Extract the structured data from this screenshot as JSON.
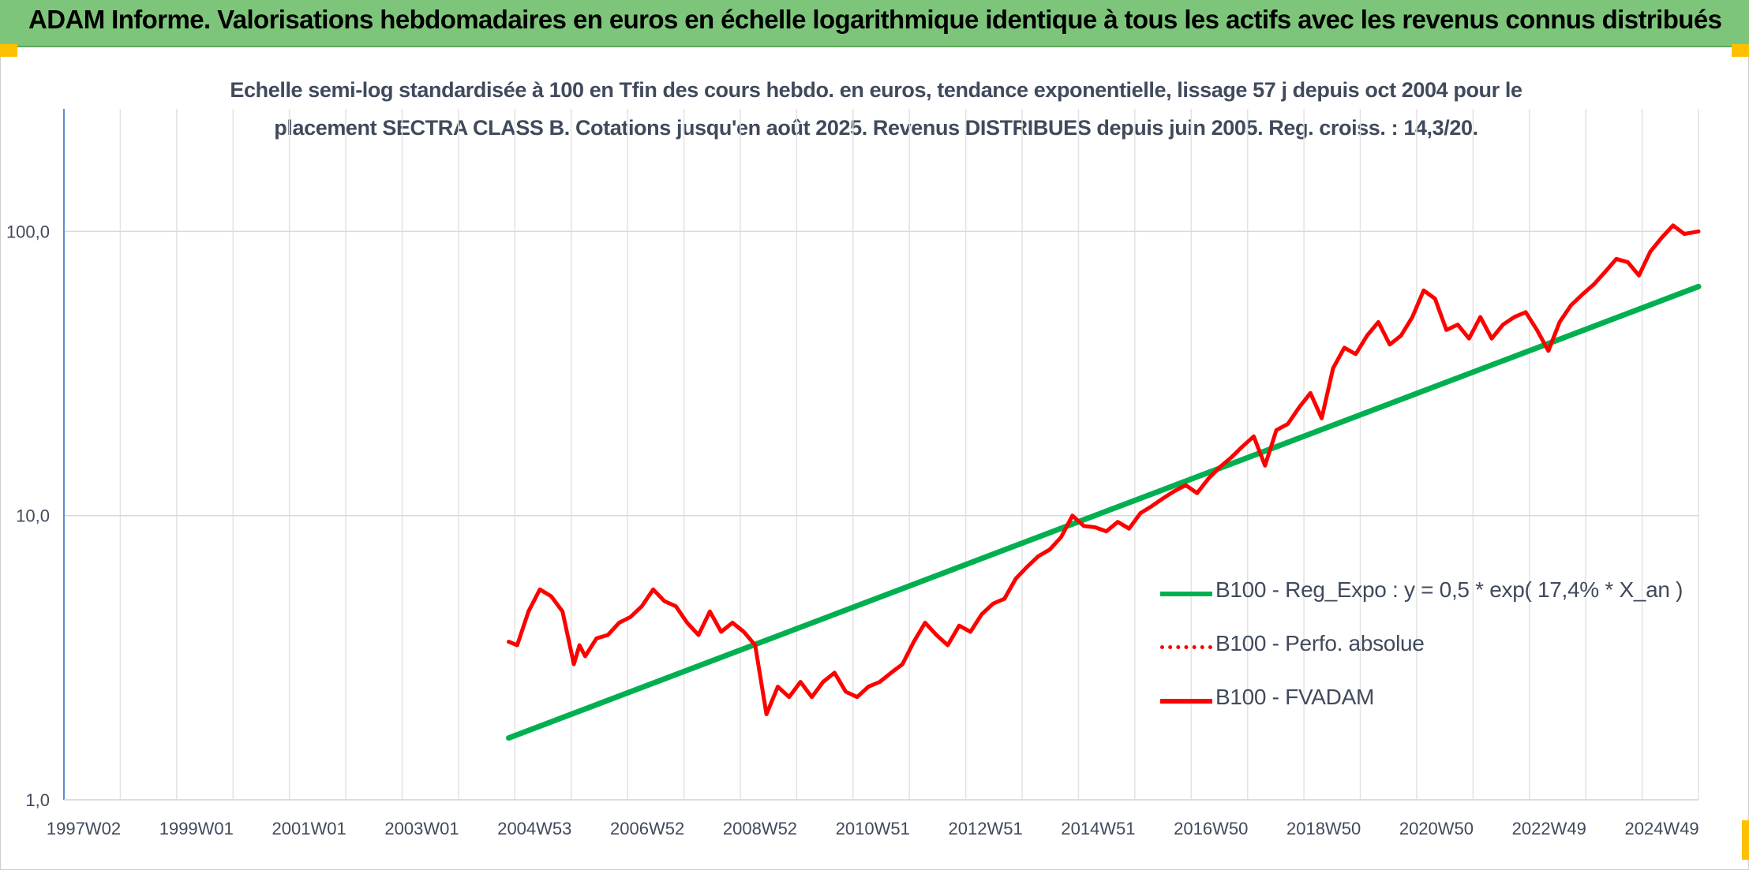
{
  "banner": {
    "title": "ADAM Informe. Valorisations hebdomadaires en euros en échelle logarithmique identique à tous les actifs avec les revenus connus distribués",
    "background": "#7dc57a",
    "corner_color": "#ffc000"
  },
  "chart_data": {
    "type": "line",
    "title": "Echelle semi-log standardisée à 100 en Tfin des cours hebdo. en euros, tendance exponentielle, lissage 57 j depuis oct 2004 pour le placement SECTRA CLASS B. Cotations jusqu'en août 2025. Revenus DISTRIBUES depuis juin 2005. Reg. croiss. : 14,3/20.",
    "yscale": "log",
    "ylim": [
      1,
      100
    ],
    "xlim": [
      1997.0,
      2025.85
    ],
    "y_ticks": [
      "1,0",
      "10,0",
      "100,0"
    ],
    "x_ticks": [
      "1997W02",
      "1999W01",
      "2001W01",
      "2003W01",
      "2004W53",
      "2006W52",
      "2008W52",
      "2010W51",
      "2012W51",
      "2014W51",
      "2016W50",
      "2018W50",
      "2020W50",
      "2022W49",
      "2024W49"
    ],
    "grid": true,
    "legend_position": "right",
    "series": [
      {
        "name": "B100 - Reg_Expo : y = 0,5 * exp( 17,4% *  X_an )",
        "color": "#00b050",
        "style": "solid",
        "x": [
          2004.85,
          2025.85
        ],
        "y": [
          1.65,
          64
        ]
      },
      {
        "name": "B100 - Perfo. absolue",
        "color": "#ff0000",
        "style": "dotted",
        "x": [],
        "y": []
      },
      {
        "name": "B100 - FVADAM",
        "color": "#ff0000",
        "style": "solid",
        "x": [
          2004.85,
          2005.0,
          2005.2,
          2005.4,
          2005.6,
          2005.8,
          2006.0,
          2006.1,
          2006.2,
          2006.4,
          2006.6,
          2006.8,
          2007.0,
          2007.2,
          2007.4,
          2007.6,
          2007.8,
          2008.0,
          2008.2,
          2008.4,
          2008.6,
          2008.8,
          2009.0,
          2009.2,
          2009.4,
          2009.6,
          2009.8,
          2010.0,
          2010.2,
          2010.4,
          2010.6,
          2010.8,
          2011.0,
          2011.2,
          2011.4,
          2011.6,
          2011.8,
          2012.0,
          2012.2,
          2012.4,
          2012.6,
          2012.8,
          2013.0,
          2013.2,
          2013.4,
          2013.6,
          2013.8,
          2014.0,
          2014.2,
          2014.4,
          2014.6,
          2014.8,
          2015.0,
          2015.2,
          2015.4,
          2015.6,
          2015.8,
          2016.0,
          2016.2,
          2016.4,
          2016.6,
          2016.8,
          2017.0,
          2017.2,
          2017.4,
          2017.6,
          2017.8,
          2018.0,
          2018.2,
          2018.4,
          2018.6,
          2018.8,
          2019.0,
          2019.2,
          2019.4,
          2019.6,
          2019.8,
          2020.0,
          2020.2,
          2020.4,
          2020.6,
          2020.8,
          2021.0,
          2021.2,
          2021.4,
          2021.6,
          2021.8,
          2022.0,
          2022.2,
          2022.4,
          2022.6,
          2022.8,
          2023.0,
          2023.2,
          2023.4,
          2023.6,
          2023.8,
          2024.0,
          2024.2,
          2024.4,
          2024.6,
          2024.8,
          2025.0,
          2025.2,
          2025.4,
          2025.6,
          2025.85
        ],
        "y": [
          3.6,
          3.5,
          4.6,
          5.5,
          5.2,
          4.6,
          3.0,
          3.5,
          3.2,
          3.7,
          3.8,
          4.2,
          4.4,
          4.8,
          5.5,
          5.0,
          4.8,
          4.2,
          3.8,
          4.6,
          3.9,
          4.2,
          3.9,
          3.5,
          2.0,
          2.5,
          2.3,
          2.6,
          2.3,
          2.6,
          2.8,
          2.4,
          2.3,
          2.5,
          2.6,
          2.8,
          3.0,
          3.6,
          4.2,
          3.8,
          3.5,
          4.1,
          3.9,
          4.5,
          4.9,
          5.1,
          6.0,
          6.6,
          7.2,
          7.6,
          8.4,
          10.0,
          9.2,
          9.1,
          8.8,
          9.5,
          9.0,
          10.2,
          10.8,
          11.5,
          12.2,
          12.8,
          12.0,
          13.5,
          14.8,
          16.0,
          17.5,
          19.0,
          15.0,
          20.0,
          21.0,
          24.0,
          27.0,
          22.0,
          33.0,
          39.0,
          37.0,
          43.0,
          48.0,
          40.0,
          43.0,
          50.0,
          62.0,
          58.0,
          45.0,
          47.0,
          42.0,
          50.0,
          42.0,
          47.0,
          50.0,
          52.0,
          45.0,
          38.0,
          48.0,
          55.0,
          60.0,
          65.0,
          72.0,
          80.0,
          78.0,
          70.0,
          85.0,
          95.0,
          105.0,
          98.0,
          100.0
        ]
      }
    ]
  }
}
